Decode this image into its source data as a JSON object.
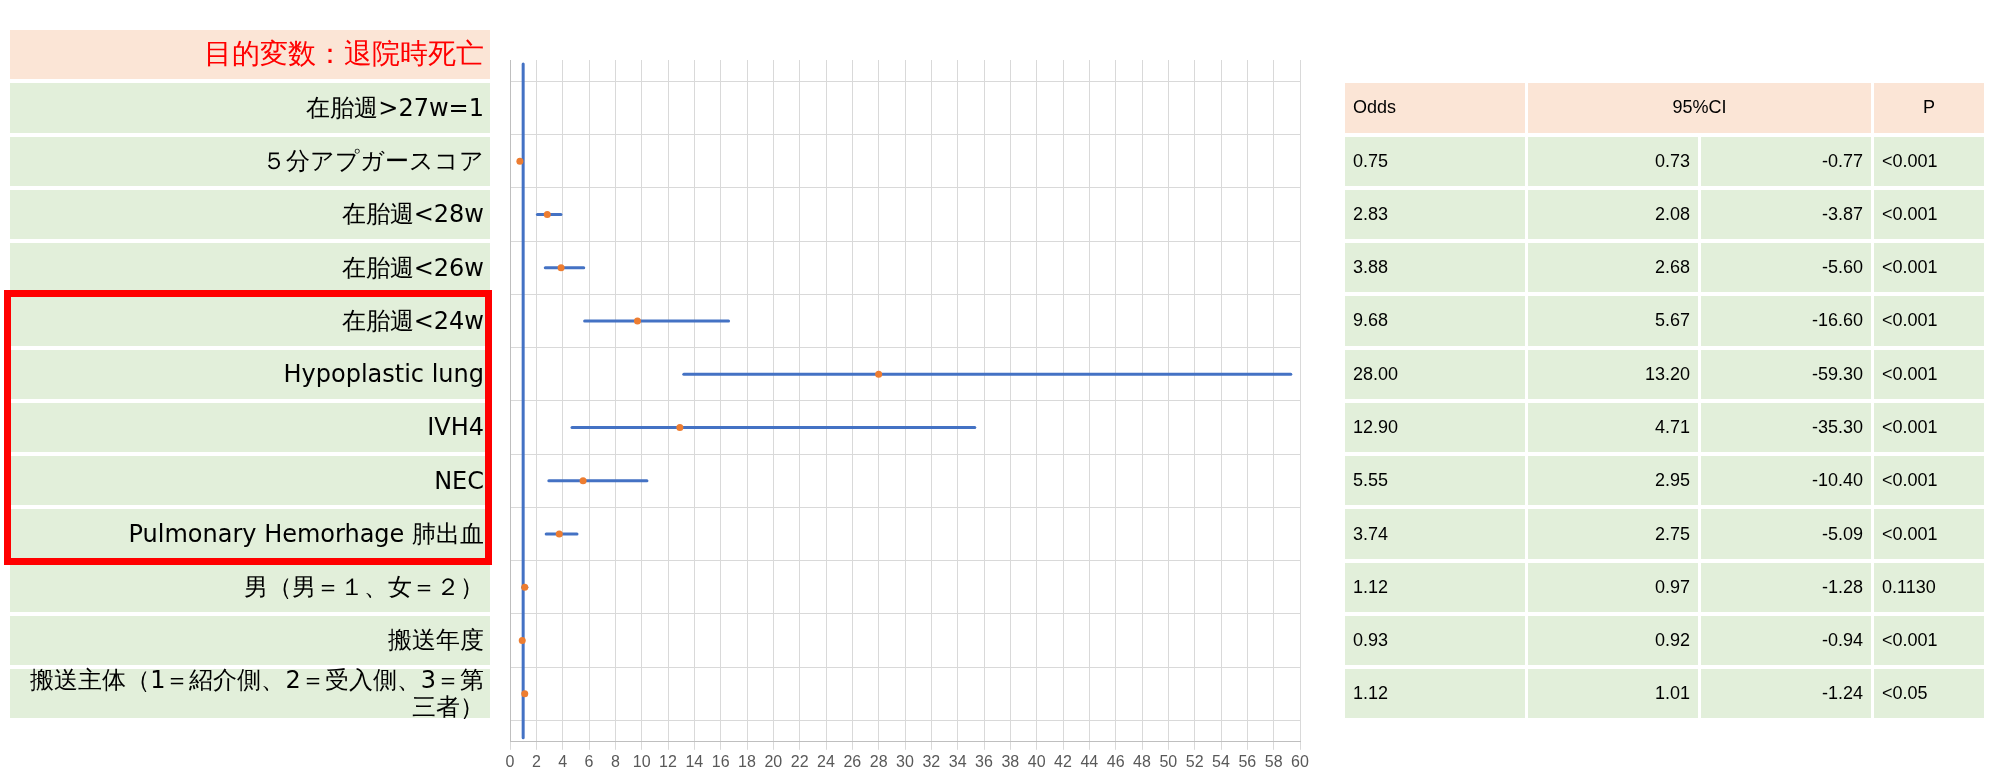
{
  "chart_data": [
    {
      "type": "scatter",
      "orientation": "horizontal",
      "title": "目的変数：退院時死亡",
      "categories": [
        "在胎週>27w=1",
        "５分アプガースコア",
        "在胎週<28w",
        "在胎週<26w",
        "在胎週<24w",
        "Hypoplastic lung",
        "IVH4",
        "NEC",
        "Pulmonary Hemorhage  肺出血",
        "男（男＝１、女＝２）",
        "搬送年度",
        "搬送主体（1＝紹介側、2＝受入側、3＝第三者）"
      ],
      "values": [
        null,
        0.75,
        2.83,
        3.88,
        9.68,
        28.0,
        12.9,
        5.55,
        3.74,
        1.12,
        0.93,
        1.12
      ],
      "errors": [
        null,
        null,
        [
          2.08,
          3.87
        ],
        [
          2.68,
          5.6
        ],
        [
          5.67,
          16.6
        ],
        [
          13.2,
          59.3
        ],
        [
          4.71,
          35.3
        ],
        [
          2.95,
          10.4
        ],
        [
          2.75,
          5.09
        ],
        [
          0.97,
          1.28
        ],
        null,
        [
          1.01,
          1.24
        ]
      ],
      "color": "#ed7d31",
      "marker": "circle",
      "grid": true,
      "xlim": [
        0,
        60
      ],
      "xticks": [
        0,
        2,
        4,
        6,
        8,
        10,
        12,
        14,
        16,
        18,
        20,
        22,
        24,
        26,
        28,
        30,
        32,
        34,
        36,
        38,
        40,
        42,
        44,
        46,
        48,
        50,
        52,
        54,
        56,
        58,
        60
      ],
      "ref_lines": [
        {
          "axis": "x",
          "value": 1,
          "color": "#4472c4"
        }
      ]
    },
    {
      "type": "other",
      "annotations": [
        "Odds",
        "95%CI",
        "P",
        "0.75",
        "0.73",
        "-0.77",
        "<0.001",
        "2.83",
        "2.08",
        "-3.87",
        "<0.001",
        "3.88",
        "2.68",
        "-5.60",
        "<0.001",
        "9.68",
        "5.67",
        "-16.60",
        "<0.001",
        "28.00",
        "13.20",
        "-59.30",
        "<0.001",
        "12.90",
        "4.71",
        "-35.30",
        "<0.001",
        "5.55",
        "2.95",
        "-10.40",
        "<0.001",
        "3.74",
        "2.75",
        "-5.09",
        "<0.001",
        "1.12",
        "0.97",
        "-1.28",
        "0.1130",
        "0.93",
        "0.92",
        "-0.94",
        "<0.001",
        "1.12",
        "1.01",
        "-1.24",
        "<0.05"
      ]
    }
  ]
}
